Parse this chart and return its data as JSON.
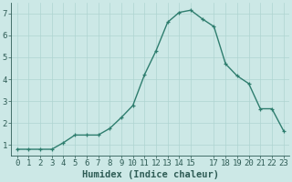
{
  "x": [
    0,
    1,
    2,
    3,
    4,
    5,
    6,
    7,
    8,
    9,
    10,
    11,
    12,
    13,
    14,
    15,
    17,
    18,
    19,
    20,
    21,
    22,
    23
  ],
  "y": [
    0.8,
    0.8,
    0.8,
    0.8,
    1.1,
    1.45,
    1.45,
    1.45,
    1.75,
    2.25,
    2.8,
    4.2,
    5.3,
    6.6,
    7.05,
    7.15,
    6.4,
    4.7,
    4.15,
    3.8,
    2.65,
    2.65,
    1.65
  ],
  "x_all": [
    0,
    1,
    2,
    3,
    4,
    5,
    6,
    7,
    8,
    9,
    10,
    11,
    12,
    13,
    14,
    15,
    16,
    17,
    18,
    19,
    20,
    21,
    22,
    23
  ],
  "y_all": [
    0.8,
    0.8,
    0.8,
    0.8,
    1.1,
    1.45,
    1.45,
    1.45,
    1.75,
    2.25,
    2.8,
    4.2,
    5.3,
    6.6,
    7.05,
    7.15,
    6.75,
    6.4,
    4.7,
    4.15,
    3.8,
    2.65,
    2.65,
    1.65
  ],
  "line_color": "#2e7d6e",
  "marker": "+",
  "marker_color": "#2e7d6e",
  "bg_color": "#cce8e6",
  "grid_color": "#aed4d1",
  "axis_color": "#2e5c55",
  "xlabel": "Humidex (Indice chaleur)",
  "xlim": [
    -0.5,
    23.5
  ],
  "ylim": [
    0.5,
    7.5
  ],
  "yticks": [
    1,
    2,
    3,
    4,
    5,
    6,
    7
  ],
  "xticks": [
    0,
    1,
    2,
    3,
    4,
    5,
    6,
    7,
    8,
    9,
    10,
    11,
    12,
    13,
    14,
    15,
    17,
    18,
    19,
    20,
    21,
    22,
    23
  ],
  "xlabel_fontsize": 7.5,
  "tick_fontsize": 6.5,
  "linewidth": 1.0,
  "markersize": 3.5,
  "markeredgewidth": 0.9
}
